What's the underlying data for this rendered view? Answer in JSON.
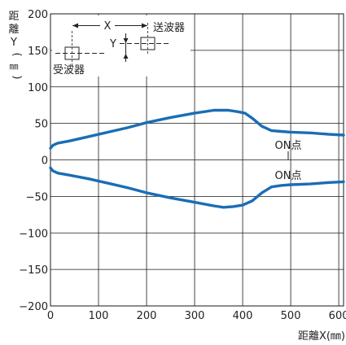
{
  "chart_data": {
    "type": "line",
    "xlabel": "距離X(㎜)",
    "ylabel": [
      "距",
      "離",
      "Y",
      "(",
      "㎜",
      ")"
    ],
    "xlim": [
      0,
      610
    ],
    "ylim": [
      -200,
      200
    ],
    "xticks": [
      0,
      100,
      200,
      300,
      400,
      500,
      600
    ],
    "yticks": [
      200,
      150,
      100,
      50,
      0,
      -50,
      -100,
      -150,
      -200
    ],
    "grid": true,
    "line_color": "#1a6db5",
    "series": [
      {
        "x": [
          0,
          5,
          15,
          40,
          80,
          120,
          160,
          200,
          250,
          300,
          340,
          370,
          390,
          405,
          420,
          440,
          460,
          480,
          500,
          540,
          580,
          610
        ],
        "values": [
          16,
          20,
          23,
          26,
          32,
          38,
          44,
          51,
          58,
          64,
          68,
          68,
          66,
          64,
          57,
          46,
          40,
          39,
          38,
          37,
          35,
          34
        ]
      },
      {
        "x": [
          0,
          5,
          15,
          40,
          80,
          120,
          160,
          200,
          250,
          300,
          340,
          360,
          380,
          400,
          420,
          440,
          460,
          480,
          500,
          540,
          580,
          610
        ],
        "values": [
          -11,
          -15,
          -18,
          -21,
          -26,
          -32,
          -38,
          -45,
          -52,
          -58,
          -63,
          -65,
          -64,
          -62,
          -56,
          -45,
          -37,
          -35,
          -34,
          -33,
          -31,
          -30
        ]
      }
    ],
    "annotations": [
      {
        "text": "ON点",
        "x": 485,
        "y": 18
      },
      {
        "text": "ON点",
        "x": 485,
        "y": -17
      }
    ],
    "inset": {
      "x_label": "X",
      "y_label": "Y",
      "transmitter": "送波器",
      "receiver": "受波器"
    }
  }
}
